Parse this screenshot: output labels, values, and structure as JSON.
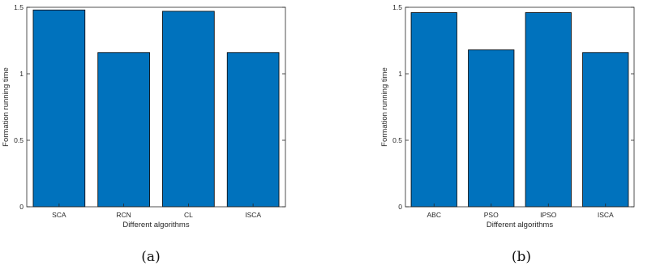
{
  "bar_color": "#0072BD",
  "chart_data": [
    {
      "type": "bar",
      "caption": "(a)",
      "categories": [
        "SCA",
        "RCN",
        "CL",
        "ISCA"
      ],
      "values": [
        1.48,
        1.16,
        1.47,
        1.16
      ],
      "xlabel": "Different algorithms",
      "ylabel": "Formation running time",
      "ylim": [
        0,
        1.5
      ],
      "yticks": [
        "0",
        "0.5",
        "1",
        "1.5"
      ],
      "grid": false
    },
    {
      "type": "bar",
      "caption": "(b)",
      "categories": [
        "ABC",
        "PSO",
        "IPSO",
        "ISCA"
      ],
      "values": [
        1.46,
        1.18,
        1.46,
        1.16
      ],
      "xlabel": "Different algorithms",
      "ylabel": "Formation running time",
      "ylim": [
        0,
        1.5
      ],
      "yticks": [
        "0",
        "0.5",
        "1",
        "1.5"
      ],
      "grid": false
    }
  ]
}
